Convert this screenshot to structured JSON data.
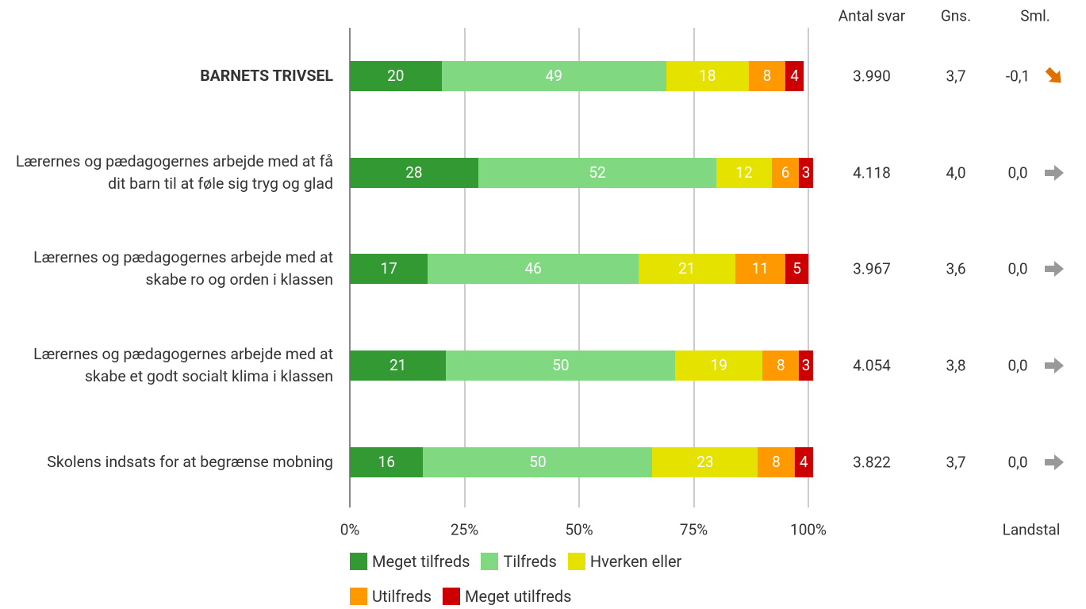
{
  "chart_data": {
    "type": "stacked_bar_horizontal",
    "categories": [
      "BARNETS TRIVSEL",
      "Lærernes og pædagogernes arbejde med at få dit barn til at føle sig tryg og glad",
      "Lærernes og pædagogernes arbejde med at skabe ro og orden i klassen",
      "Lærernes og pædagogernes arbejde med at skabe et godt socialt klima i klassen",
      "Skolens indsats for at begrænse mobning"
    ],
    "series": [
      {
        "name": "Meget tilfreds",
        "color": "#339933",
        "values": [
          20,
          28,
          17,
          21,
          16
        ]
      },
      {
        "name": "Tilfreds",
        "color": "#80d980",
        "values": [
          49,
          52,
          46,
          50,
          50
        ]
      },
      {
        "name": "Hverken eller",
        "color": "#e5e200",
        "values": [
          18,
          12,
          21,
          19,
          23
        ]
      },
      {
        "name": "Utilfreds",
        "color": "#ff9900",
        "values": [
          8,
          6,
          11,
          8,
          8
        ]
      },
      {
        "name": "Meget utilfreds",
        "color": "#cc0000",
        "values": [
          4,
          3,
          5,
          3,
          4
        ]
      }
    ],
    "xlim": [
      0,
      100
    ],
    "xticks": [
      {
        "value": 0,
        "label": "0%"
      },
      {
        "value": 25,
        "label": "25%"
      },
      {
        "value": 50,
        "label": "50%"
      },
      {
        "value": 75,
        "label": "75%"
      },
      {
        "value": 100,
        "label": "100%"
      }
    ],
    "grid": true,
    "columns": [
      {
        "header": "Antal svar",
        "values": [
          3990,
          4118,
          3967,
          4054,
          3822
        ],
        "value_labels": [
          "3.990",
          "4.118",
          "3.967",
          "4.054",
          "3.822"
        ]
      },
      {
        "header": "Gns.",
        "values": [
          3.7,
          4.0,
          3.6,
          3.8,
          3.7
        ],
        "value_labels": [
          "3,7",
          "4,0",
          "3,6",
          "3,8",
          "3,7"
        ]
      },
      {
        "header": "Sml.",
        "values": [
          -0.1,
          0.0,
          0.0,
          0.0,
          0.0
        ],
        "value_labels": [
          "-0,1",
          "0,0",
          "0,0",
          "0,0",
          "0,0"
        ],
        "footer": "Landstal"
      }
    ]
  }
}
